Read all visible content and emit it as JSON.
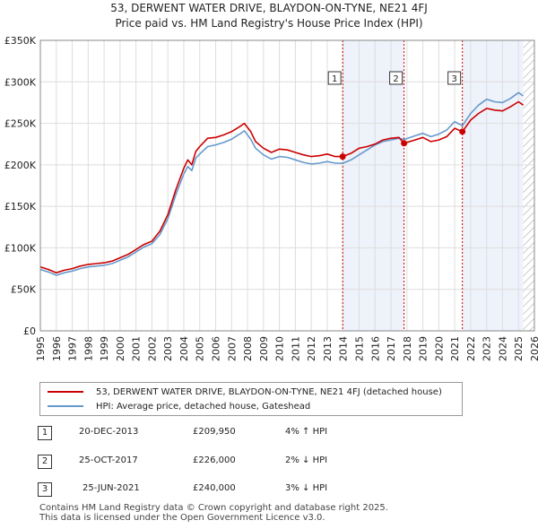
{
  "title": {
    "line1": "53, DERWENT WATER DRIVE, BLAYDON-ON-TYNE, NE21 4FJ",
    "line2": "Price paid vs. HM Land Registry's House Price Index (HPI)"
  },
  "colors": {
    "red": "#cc0000",
    "blue": "#6699cc",
    "shade": "#eef2fb",
    "grid": "#dddddd"
  },
  "legend": {
    "property": "53, DERWENT WATER DRIVE, BLAYDON-ON-TYNE, NE21 4FJ (detached house)",
    "hpi": "HPI: Average price, detached house, Gateshead"
  },
  "transactions": [
    {
      "num": "1",
      "date": "20-DEC-2013",
      "price": "£209,950",
      "hpi": "4% ↑ HPI"
    },
    {
      "num": "2",
      "date": "25-OCT-2017",
      "price": "£226,000",
      "hpi": "2% ↓ HPI"
    },
    {
      "num": "3",
      "date": "25-JUN-2021",
      "price": "£240,000",
      "hpi": "3% ↓ HPI"
    }
  ],
  "footer": {
    "line1": "Contains HM Land Registry data © Crown copyright and database right 2025.",
    "line2": "This data is licensed under the Open Government Licence v3.0."
  },
  "chart_data": {
    "type": "line",
    "title": "53, DERWENT WATER DRIVE, BLAYDON-ON-TYNE, NE21 4FJ - Price paid vs. HM Land Registry's House Price Index (HPI)",
    "xlabel": "",
    "ylabel": "",
    "xlim": [
      1995,
      2026
    ],
    "ylim": [
      0,
      350000
    ],
    "y_ticks": [
      0,
      50000,
      100000,
      150000,
      200000,
      250000,
      300000,
      350000
    ],
    "y_tick_labels": [
      "£0",
      "£50K",
      "£100K",
      "£150K",
      "£200K",
      "£250K",
      "£300K",
      "£350K"
    ],
    "x_ticks": [
      1995,
      1996,
      1997,
      1998,
      1999,
      2000,
      2001,
      2002,
      2003,
      2004,
      2005,
      2006,
      2007,
      2008,
      2009,
      2010,
      2011,
      2012,
      2013,
      2014,
      2015,
      2016,
      2017,
      2018,
      2019,
      2020,
      2021,
      2022,
      2023,
      2024,
      2025,
      2026
    ],
    "x_tick_labels": [
      "1995",
      "1996",
      "1997",
      "1998",
      "1999",
      "2000",
      "2001",
      "2002",
      "2003",
      "2004",
      "2005",
      "2006",
      "2007",
      "2008",
      "2009",
      "2010",
      "2011",
      "2012",
      "2013",
      "2014",
      "2015",
      "2016",
      "2017",
      "2018",
      "2019",
      "2020",
      "2021",
      "2022",
      "2023",
      "2024",
      "2025",
      "2026"
    ],
    "grid": true,
    "shaded_periods": [
      [
        2013.97,
        2017.82
      ],
      [
        2021.48,
        2025.3
      ]
    ],
    "hatched_region": [
      2025.3,
      2026
    ],
    "series": [
      {
        "name": "53, DERWENT WATER DRIVE, BLAYDON-ON-TYNE, NE21 4FJ (detached house)",
        "color": "#cc0000",
        "x": [
          1995.0,
          1995.5,
          1996.0,
          1996.5,
          1997.0,
          1997.5,
          1998.0,
          1998.5,
          1999.0,
          1999.5,
          2000.0,
          2000.5,
          2001.0,
          2001.5,
          2002.0,
          2002.5,
          2003.0,
          2003.5,
          2004.0,
          2004.25,
          2004.5,
          2004.75,
          2005.0,
          2005.5,
          2006.0,
          2006.5,
          2007.0,
          2007.5,
          2007.8,
          2008.2,
          2008.5,
          2009.0,
          2009.5,
          2010.0,
          2010.5,
          2011.0,
          2011.5,
          2012.0,
          2012.5,
          2013.0,
          2013.5,
          2013.97,
          2014.5,
          2015.0,
          2015.5,
          2016.0,
          2016.5,
          2017.0,
          2017.5,
          2017.82,
          2018.5,
          2019.0,
          2019.5,
          2020.0,
          2020.5,
          2021.0,
          2021.48,
          2022.0,
          2022.5,
          2023.0,
          2023.5,
          2024.0,
          2024.5,
          2025.0,
          2025.3
        ],
        "y": [
          77000,
          74000,
          70000,
          73000,
          75000,
          78000,
          80000,
          81000,
          82000,
          84000,
          88000,
          92000,
          98000,
          104000,
          108000,
          120000,
          140000,
          170000,
          196000,
          206000,
          200000,
          216000,
          222000,
          232000,
          233000,
          236000,
          240000,
          246000,
          250000,
          240000,
          228000,
          220000,
          215000,
          219000,
          218000,
          215000,
          212000,
          210000,
          211000,
          213000,
          210000,
          209950,
          214000,
          220000,
          222000,
          225000,
          230000,
          232000,
          233000,
          226000,
          230000,
          233000,
          228000,
          230000,
          234000,
          244000,
          240000,
          254000,
          262000,
          268000,
          266000,
          265000,
          270000,
          276000,
          272000
        ]
      },
      {
        "name": "HPI: Average price, detached house, Gateshead",
        "color": "#6699cc",
        "x": [
          1995.0,
          1995.5,
          1996.0,
          1996.5,
          1997.0,
          1997.5,
          1998.0,
          1998.5,
          1999.0,
          1999.5,
          2000.0,
          2000.5,
          2001.0,
          2001.5,
          2002.0,
          2002.5,
          2003.0,
          2003.5,
          2004.0,
          2004.25,
          2004.5,
          2004.75,
          2005.0,
          2005.5,
          2006.0,
          2006.5,
          2007.0,
          2007.5,
          2007.8,
          2008.2,
          2008.5,
          2009.0,
          2009.5,
          2010.0,
          2010.5,
          2011.0,
          2011.5,
          2012.0,
          2012.5,
          2013.0,
          2013.5,
          2013.97,
          2014.5,
          2015.0,
          2015.5,
          2016.0,
          2016.5,
          2017.0,
          2017.5,
          2017.82,
          2018.5,
          2019.0,
          2019.5,
          2020.0,
          2020.5,
          2021.0,
          2021.48,
          2022.0,
          2022.5,
          2023.0,
          2023.5,
          2024.0,
          2024.5,
          2025.0,
          2025.3
        ],
        "y": [
          74000,
          71000,
          67000,
          70000,
          72000,
          75000,
          77000,
          78000,
          79000,
          81000,
          85000,
          89000,
          95000,
          101000,
          105000,
          116000,
          135000,
          164000,
          189000,
          198000,
          193000,
          208000,
          213000,
          222000,
          224000,
          227000,
          231000,
          237000,
          241000,
          231000,
          220000,
          212000,
          207000,
          210000,
          209000,
          206000,
          203000,
          201000,
          202000,
          204000,
          202000,
          201900,
          206000,
          212000,
          218000,
          224000,
          228000,
          230000,
          232000,
          230500,
          235000,
          238000,
          234000,
          237000,
          242000,
          252000,
          247000,
          262000,
          272000,
          279000,
          276000,
          275000,
          280000,
          287000,
          283000
        ]
      }
    ],
    "markers": [
      {
        "label": "1",
        "x": 2013.97,
        "y": 209950
      },
      {
        "label": "2",
        "x": 2017.82,
        "y": 226000
      },
      {
        "label": "3",
        "x": 2021.48,
        "y": 240000
      }
    ]
  }
}
